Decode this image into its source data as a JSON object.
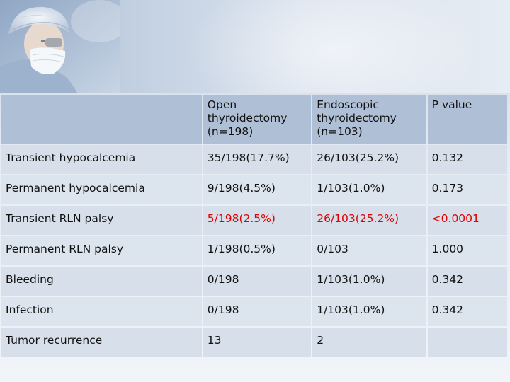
{
  "table": {
    "columns": [
      "",
      "Open thyroidectomy (n=198)",
      "Endoscopic thyroidectomy (n=103)",
      "P value"
    ],
    "header_lines": {
      "open": [
        "Open",
        "thyroidectomy",
        "(n=198)"
      ],
      "endoscopic": [
        "Endoscopic",
        "thyroidectomy",
        "(n=103)"
      ],
      "pvalue": "P value"
    },
    "rows": [
      {
        "label": "Transient hypocalcemia",
        "open": "35/198(17.7%)",
        "endoscopic": "26/103(25.2%)",
        "p": "0.132"
      },
      {
        "label": "Permanent hypocalcemia",
        "open": "9/198(4.5%)",
        "endoscopic": "1/103(1.0%)",
        "p": "0.173"
      },
      {
        "label": "Transient RLN palsy",
        "open": "5/198(2.5%)",
        "endoscopic": "26/103(25.2%)",
        "p": "<0.0001"
      },
      {
        "label": "Permanent RLN palsy",
        "open": "1/198(0.5%)",
        "endoscopic": "0/103",
        "p": "1.000"
      },
      {
        "label": "Bleeding",
        "open": "0/198",
        "endoscopic": "1/103(1.0%)",
        "p": "0.342"
      },
      {
        "label": "Infection",
        "open": "0/198",
        "endoscopic": "1/103(1.0%)",
        "p": "0.342"
      },
      {
        "label": "Tumor recurrence",
        "open": "13",
        "endoscopic": "2",
        "p": ""
      }
    ]
  },
  "colors": {
    "header_bg": "#aebfd6",
    "row_bg": "#d6dfea",
    "highlight": "#e00000"
  }
}
